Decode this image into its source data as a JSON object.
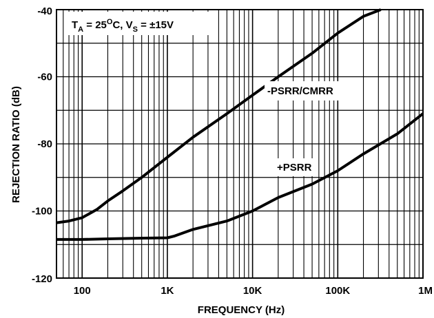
{
  "chart_data": {
    "type": "line",
    "xlabel": "FREQUENCY (Hz)",
    "ylabel": "REJECTION RATIO (dB)",
    "x_scale": "log",
    "xlim": [
      50,
      1000000
    ],
    "ylim": [
      -120,
      -40
    ],
    "grid": true,
    "x_ticks": [
      {
        "value": 100,
        "label": "100"
      },
      {
        "value": 1000,
        "label": "1K"
      },
      {
        "value": 10000,
        "label": "10K"
      },
      {
        "value": 100000,
        "label": "100K"
      },
      {
        "value": 1000000,
        "label": "1M"
      }
    ],
    "y_ticks": [
      {
        "value": -40,
        "label": "-40"
      },
      {
        "value": -60,
        "label": "-60"
      },
      {
        "value": -80,
        "label": "-80"
      },
      {
        "value": -100,
        "label": "-100"
      },
      {
        "value": -120,
        "label": "-120"
      }
    ],
    "annotations": [
      {
        "text_parts": [
          "T",
          "A",
          " = 25",
          "O",
          "C, V",
          "S",
          " = ±15V"
        ]
      },
      {
        "text": "-PSRR/CMRR",
        "series": "-PSRR/CMRR"
      },
      {
        "text": "+PSRR",
        "series": "+PSRR"
      }
    ],
    "series": [
      {
        "name": "-PSRR/CMRR",
        "x": [
          50,
          70,
          100,
          150,
          200,
          300,
          500,
          1000,
          2000,
          5000,
          10000,
          20000,
          50000,
          100000,
          200000,
          320000
        ],
        "y": [
          -103.5,
          -103,
          -102,
          -99.5,
          -97,
          -94,
          -90,
          -84,
          -78,
          -71,
          -65.5,
          -60,
          -53,
          -47,
          -42,
          -40
        ]
      },
      {
        "name": "+PSRR",
        "x": [
          50,
          100,
          200,
          500,
          1000,
          1200,
          2000,
          5000,
          10000,
          20000,
          50000,
          100000,
          200000,
          500000,
          1000000
        ],
        "y": [
          -108.5,
          -108.5,
          -108.3,
          -108.1,
          -108,
          -107.5,
          -105.5,
          -103,
          -100,
          -96,
          -92,
          -88,
          -83,
          -77,
          -71
        ]
      }
    ],
    "colors": {
      "line": "#000000",
      "grid": "#000000",
      "background": "#ffffff"
    }
  }
}
